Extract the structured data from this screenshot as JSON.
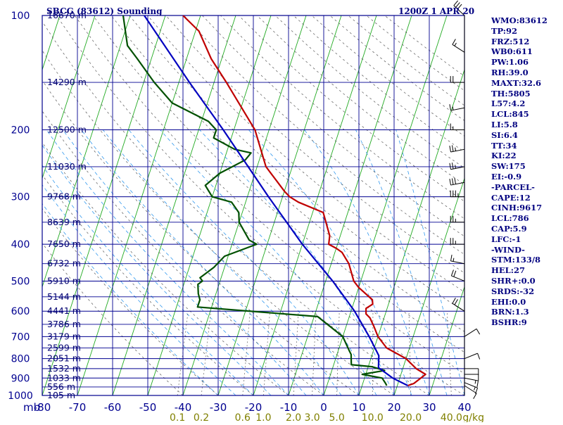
{
  "header": {
    "station_title": "SBCG (83612) Sounding",
    "datetime": "1200Z  1 APR 20"
  },
  "stats": [
    "WMO:83612",
    "TP:92",
    "FRZ:512",
    "WB0:611",
    "PW:1.06",
    "RH:39.0",
    "MAXT:32.6",
    "TH:5805",
    "L57:4.2",
    "LCL:845",
    "LI:5.8",
    "SI:6.4",
    "TT:34",
    "KI:22",
    "SW:175",
    "EI:-0.9",
    "-PARCEL-",
    "CAPE:12",
    "CINH:9617",
    "LCL:786",
    "CAP:5.9",
    "LFC:-1",
    "-WIND-",
    "STM:133/8",
    "HEL:27",
    "SHR+:0.0",
    "SRDS:-32",
    "EHI:0.0",
    "BRN:1.3",
    "BSHR:9"
  ],
  "chart_data": {
    "type": "line",
    "title": "SBCG (83612) Sounding",
    "xlabel": "",
    "ylabel": "",
    "y_unit_label": "mb",
    "mixing_ratio_unit": "g/kg",
    "xlim": [
      -80,
      40
    ],
    "ylim_pressure_mb": [
      1000,
      100
    ],
    "y_scale": "log",
    "x_ticks": [
      -80,
      -70,
      -60,
      -50,
      -40,
      -30,
      -20,
      -10,
      0,
      10,
      20,
      30,
      40
    ],
    "x_tick_labels": [
      "-80",
      "-70",
      "-60",
      "-50",
      "-40",
      "-30",
      "-20",
      "-10",
      "0",
      "10",
      "20",
      "30",
      "40"
    ],
    "pressure_ticks": [
      100,
      200,
      300,
      400,
      500,
      600,
      700,
      800,
      900,
      1000
    ],
    "pressure_tick_labels": [
      "100",
      "200",
      "300",
      "400",
      "500",
      "600",
      "700",
      "800",
      "900",
      "1000"
    ],
    "height_labels": [
      {
        "p": 100,
        "label": "16670 m"
      },
      {
        "p": 150,
        "label": "14290 m"
      },
      {
        "p": 200,
        "label": "12500 m"
      },
      {
        "p": 250,
        "label": "11030 m"
      },
      {
        "p": 300,
        "label": "9768 m"
      },
      {
        "p": 350,
        "label": "8639 m"
      },
      {
        "p": 400,
        "label": "7650 m"
      },
      {
        "p": 450,
        "label": "6732 m"
      },
      {
        "p": 500,
        "label": "5910 m"
      },
      {
        "p": 550,
        "label": "5144 m"
      },
      {
        "p": 600,
        "label": "4441 m"
      },
      {
        "p": 650,
        "label": "3786 m"
      },
      {
        "p": 700,
        "label": "3179 m"
      },
      {
        "p": 750,
        "label": "2599 m"
      },
      {
        "p": 800,
        "label": "2051 m"
      },
      {
        "p": 850,
        "label": "1532 m"
      },
      {
        "p": 900,
        "label": "1033 m"
      },
      {
        "p": 950,
        "label": "556 m"
      },
      {
        "p": 1000,
        "label": "105 m"
      }
    ],
    "mixing_ratio_labels": [
      "0.1",
      "0.2",
      "0.6",
      "1.0",
      "2.0",
      "3.0",
      "5.0",
      "10.0",
      "20.0",
      "40.0"
    ],
    "mixing_ratio_values": [
      0.1,
      0.2,
      0.6,
      1.0,
      2.0,
      3.0,
      5.0,
      10.0,
      20.0,
      40.0
    ],
    "skew_deg_per_log_decade": 35,
    "series": [
      {
        "name": "Temperature",
        "color": "#c00000",
        "points": [
          [
            942,
            23.0
          ],
          [
            930,
            24.5
          ],
          [
            900,
            26.0
          ],
          [
            880,
            27.0
          ],
          [
            850,
            23.8
          ],
          [
            800,
            20.0
          ],
          [
            750,
            13.5
          ],
          [
            700,
            10.0
          ],
          [
            660,
            8.0
          ],
          [
            625,
            6.0
          ],
          [
            610,
            4.5
          ],
          [
            590,
            4.0
          ],
          [
            575,
            5.5
          ],
          [
            560,
            5.0
          ],
          [
            520,
            0.0
          ],
          [
            500,
            -2.0
          ],
          [
            450,
            -5.0
          ],
          [
            420,
            -8.0
          ],
          [
            410,
            -10.0
          ],
          [
            400,
            -12.5
          ],
          [
            380,
            -13.0
          ],
          [
            330,
            -17.0
          ],
          [
            310,
            -25.0
          ],
          [
            300,
            -28.0
          ],
          [
            290,
            -30.0
          ],
          [
            250,
            -37.5
          ],
          [
            200,
            -44.0
          ],
          [
            150,
            -56.5
          ],
          [
            130,
            -63.0
          ],
          [
            110,
            -69.0
          ],
          [
            100,
            -75.0
          ]
        ]
      },
      {
        "name": "Dewpoint",
        "color": "#005000",
        "points": [
          [
            942,
            17.0
          ],
          [
            930,
            16.5
          ],
          [
            900,
            15.0
          ],
          [
            880,
            9.0
          ],
          [
            860,
            15.0
          ],
          [
            840,
            11.0
          ],
          [
            830,
            5.0
          ],
          [
            780,
            4.0
          ],
          [
            760,
            3.0
          ],
          [
            700,
            0.0
          ],
          [
            620,
            -9.0
          ],
          [
            585,
            -44.0
          ],
          [
            560,
            -44.0
          ],
          [
            540,
            -45.0
          ],
          [
            510,
            -46.0
          ],
          [
            500,
            -45.0
          ],
          [
            490,
            -46.0
          ],
          [
            460,
            -43.0
          ],
          [
            430,
            -41.0
          ],
          [
            400,
            -33.0
          ],
          [
            390,
            -35.5
          ],
          [
            350,
            -40.0
          ],
          [
            330,
            -41.0
          ],
          [
            310,
            -44.0
          ],
          [
            300,
            -50.0
          ],
          [
            280,
            -53.0
          ],
          [
            260,
            -50.0
          ],
          [
            240,
            -44.0
          ],
          [
            230,
            -43.0
          ],
          [
            225,
            -48.0
          ],
          [
            210,
            -55.0
          ],
          [
            200,
            -55.0
          ],
          [
            190,
            -58.0
          ],
          [
            170,
            -70.0
          ],
          [
            150,
            -77.0
          ],
          [
            130,
            -84.0
          ],
          [
            120,
            -88.0
          ],
          [
            100,
            -92.0
          ]
        ]
      },
      {
        "name": "Parcel",
        "color": "#0000c0",
        "points": [
          [
            942,
            23.0
          ],
          [
            900,
            18.0
          ],
          [
            845,
            13.0
          ],
          [
            786,
            12.0
          ],
          [
            700,
            7.5
          ],
          [
            600,
            1.0
          ],
          [
            500,
            -8.0
          ],
          [
            400,
            -20.0
          ],
          [
            300,
            -34.0
          ],
          [
            200,
            -53.0
          ],
          [
            150,
            -67.0
          ],
          [
            100,
            -86.0
          ]
        ]
      }
    ],
    "wind_barbs": [
      {
        "p": 942,
        "dir": 120,
        "kt": 10
      },
      {
        "p": 925,
        "dir": 110,
        "kt": 15
      },
      {
        "p": 900,
        "dir": 100,
        "kt": 15
      },
      {
        "p": 880,
        "dir": 90,
        "kt": 10
      },
      {
        "p": 850,
        "dir": 90,
        "kt": 10
      },
      {
        "p": 800,
        "dir": 70,
        "kt": 10
      },
      {
        "p": 700,
        "dir": 60,
        "kt": 10
      },
      {
        "p": 600,
        "dir": 300,
        "kt": 20
      },
      {
        "p": 500,
        "dir": 290,
        "kt": 20
      },
      {
        "p": 450,
        "dir": 280,
        "kt": 15
      },
      {
        "p": 400,
        "dir": 270,
        "kt": 25
      },
      {
        "p": 350,
        "dir": 270,
        "kt": 25
      },
      {
        "p": 300,
        "dir": 270,
        "kt": 35
      },
      {
        "p": 275,
        "dir": 260,
        "kt": 30
      },
      {
        "p": 250,
        "dir": 260,
        "kt": 25
      },
      {
        "p": 225,
        "dir": 260,
        "kt": 25
      },
      {
        "p": 200,
        "dir": 270,
        "kt": 15
      },
      {
        "p": 175,
        "dir": 260,
        "kt": 15
      },
      {
        "p": 150,
        "dir": 270,
        "kt": 20
      },
      {
        "p": 125,
        "dir": 300,
        "kt": 15
      },
      {
        "p": 100,
        "dir": 310,
        "kt": 30
      }
    ]
  }
}
